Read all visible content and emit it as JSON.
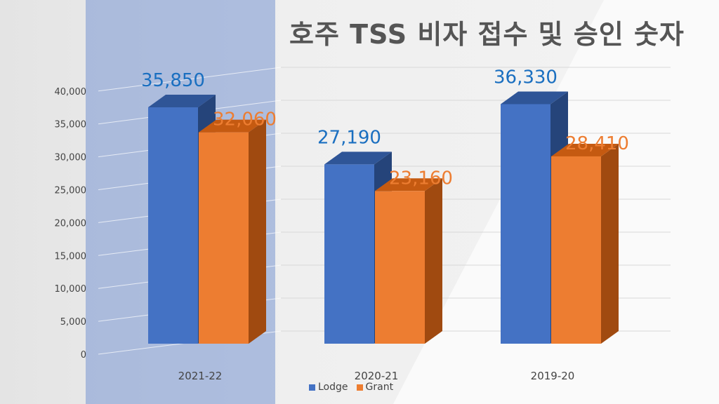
{
  "chart_data": {
    "type": "bar",
    "title": "호주 TSS 비자 접수 및 승인 숫자",
    "categories": [
      "2021-22",
      "2020-21",
      "2019-20"
    ],
    "series": [
      {
        "name": "Lodge",
        "values": [
          35850,
          27190,
          36330
        ],
        "labels": [
          "35,850",
          "27,190",
          "36,330"
        ],
        "color": "#4472c4",
        "label_color": "#1a6fc0"
      },
      {
        "name": "Grant",
        "values": [
          32060,
          23160,
          28410
        ],
        "labels": [
          "32,060",
          "23,160",
          "28,410"
        ],
        "color": "#ed7d31",
        "label_color": "#ed7d31"
      }
    ],
    "yticks": [
      0,
      5000,
      10000,
      15000,
      20000,
      25000,
      30000,
      35000,
      40000
    ],
    "ytick_labels": [
      "0",
      "5,000",
      "10,000",
      "15,000",
      "20,000",
      "25,000",
      "30,000",
      "35,000",
      "40,000"
    ],
    "ylim": [
      0,
      40000
    ],
    "legend": "bottom",
    "grid": true,
    "xlabel": "",
    "ylabel": ""
  }
}
